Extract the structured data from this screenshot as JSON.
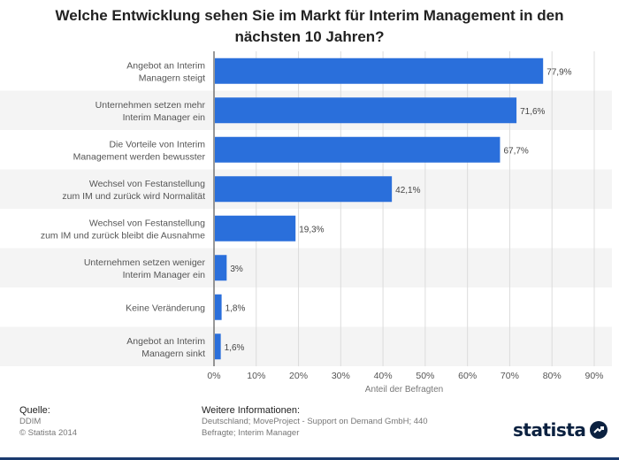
{
  "chart_data": {
    "type": "bar",
    "orientation": "horizontal",
    "title_lines": [
      "Welche Entwicklung sehen Sie im Markt für Interim Management in den",
      "nächsten 10 Jahren?"
    ],
    "categories": [
      [
        "Angebot an Interim",
        "Managern steigt"
      ],
      [
        "Unternehmen setzen mehr",
        "Interim Manager ein"
      ],
      [
        "Die Vorteile von Interim",
        "Management werden bewusster"
      ],
      [
        "Wechsel von Festanstellung",
        "zum IM und zurück wird Normalität"
      ],
      [
        "Wechsel von Festanstellung",
        "zum IM und zurück bleibt die Ausnahme"
      ],
      [
        "Unternehmen setzen weniger",
        "Interim Manager ein"
      ],
      [
        "Keine Veränderung"
      ],
      [
        "Angebot an Interim",
        "Managern sinkt"
      ]
    ],
    "values": [
      77.9,
      71.6,
      67.7,
      42.1,
      19.3,
      3,
      1.8,
      1.6
    ],
    "value_labels": [
      "77,9%",
      "71,6%",
      "67,7%",
      "42,1%",
      "19,3%",
      "3%",
      "1,8%",
      "1,6%"
    ],
    "xlim": [
      0,
      90
    ],
    "xticks": [
      0,
      10,
      20,
      30,
      40,
      50,
      60,
      70,
      80,
      90
    ],
    "xtick_labels": [
      "0%",
      "10%",
      "20%",
      "30%",
      "40%",
      "50%",
      "60%",
      "70%",
      "80%",
      "90%"
    ],
    "xlabel": "Anteil der Befragten",
    "grid": true,
    "bar_color": "#2a6fdb",
    "band_color": "#f4f4f4"
  },
  "footer": {
    "source_heading": "Quelle:",
    "source_lines": [
      "DDIM",
      "© Statista 2014"
    ],
    "info_heading": "Weitere Informationen:",
    "info_lines": [
      "Deutschland; MoveProject - Support on Demand GmbH; 440",
      "Befragte; Interim Manager"
    ]
  },
  "logo": {
    "text": "statista",
    "icon": "statista-arrow-icon"
  }
}
